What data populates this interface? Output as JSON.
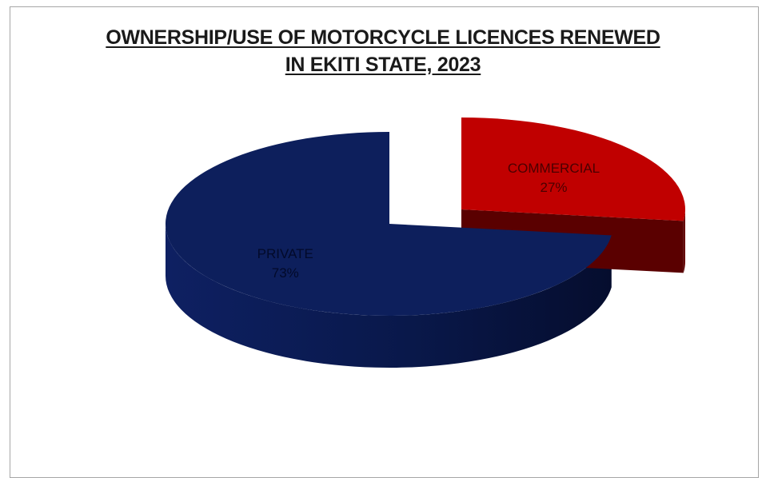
{
  "chart_data": {
    "type": "pie",
    "title_lines": [
      "OWNERSHIP/USE OF MOTORCYCLE LICENCES RENEWED",
      "IN EKITI STATE, 2023"
    ],
    "slices": [
      {
        "label": "PRIVATE",
        "value_label": "73%",
        "value": 73,
        "color": "#0d1f5c",
        "exploded": false
      },
      {
        "label": "COMMERCIAL",
        "value_label": "27%",
        "value": 27,
        "color": "#c00000",
        "exploded": true
      }
    ],
    "style": "3d-exploded"
  }
}
